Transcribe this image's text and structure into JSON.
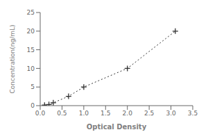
{
  "chart_data": {
    "type": "line",
    "x": [
      0.1,
      0.2,
      0.3,
      0.65,
      1.0,
      2.0,
      3.1
    ],
    "values": [
      0.16,
      0.31,
      0.78,
      2.5,
      5.0,
      10.0,
      20.0
    ],
    "xlabel": "Optical Density",
    "ylabel": "Concentration(ng/mL)",
    "xlim": [
      0,
      3.5
    ],
    "ylim": [
      0,
      25
    ],
    "xticks": [
      {
        "value": 0,
        "label": "0.0"
      },
      0.5,
      {
        "value": 1,
        "label": "1.0"
      },
      1.5,
      {
        "value": 2,
        "label": "2.0"
      },
      2.5,
      {
        "value": 3,
        "label": "3.0"
      },
      3.5
    ],
    "yticks": [
      0,
      5,
      10,
      15,
      20,
      25
    ],
    "color": "#333333",
    "marker": "plus",
    "line_style": "dotted",
    "grid": false
  }
}
